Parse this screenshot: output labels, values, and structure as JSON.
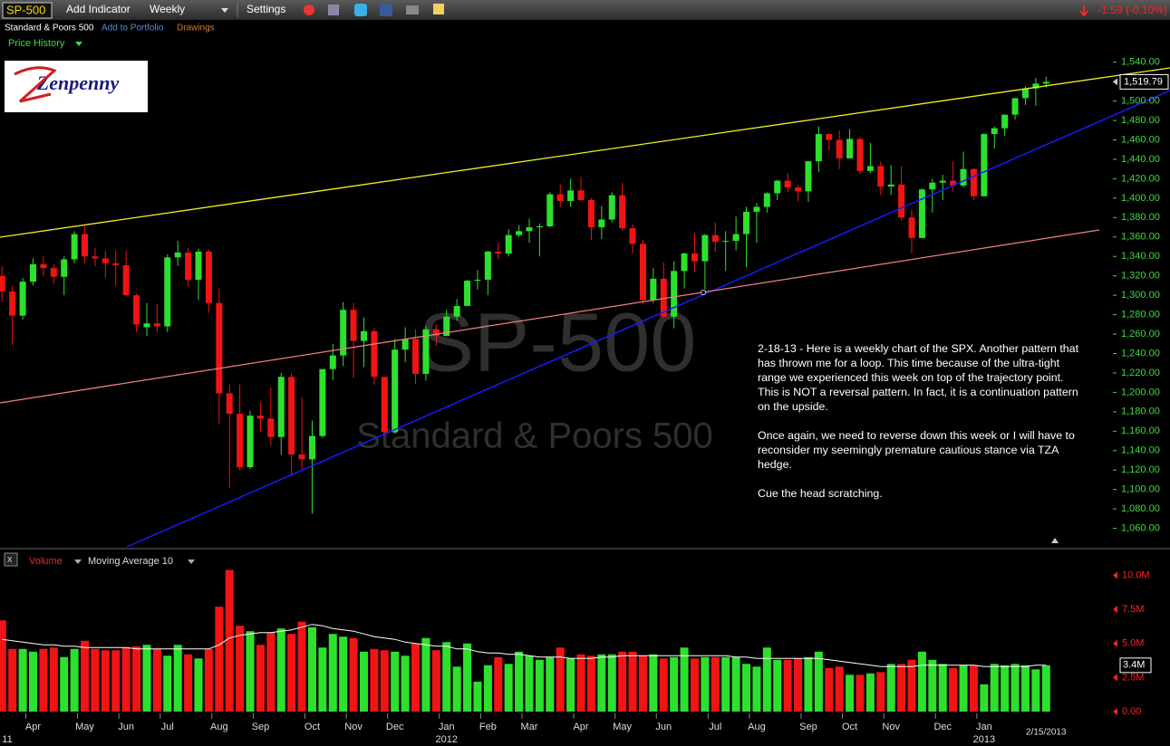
{
  "toolbar": {
    "symbol": "SP-500",
    "add_indicator": "Add Indicator",
    "interval": "Weekly",
    "settings": "Settings",
    "change": "-1.59 (-0.10%)"
  },
  "subbar": {
    "name": "Standard & Poors 500",
    "add_portfolio": "Add to Portfolio",
    "drawings": "Drawings"
  },
  "panel_title": "Price History",
  "logo": "Zenpenny",
  "annotation": [
    "2-18-13 - Here is a weekly chart of the SPX. Another pattern that has thrown me for a loop. This time because of the ultra-tight range we experienced this week on top of the trajectory point. This is NOT a reversal pattern. In fact, it is a continuation pattern on the upside.",
    "Once again, we need to reverse down this week or I will have to reconsider my seemingly premature cautious stance via TZA hedge.",
    "Cue the head scratching."
  ],
  "chart_data": {
    "type": "candlestick",
    "watermark": "SP-500",
    "watermark_sub": "Standard & Poors 500",
    "up_color": "#2ee02e",
    "down_color": "#f01414",
    "xlim": [
      -0.2,
      107.2
    ],
    "ylim": [
      1040,
      1550
    ],
    "yticks": [
      {
        "value": 1060,
        "label": "1,060.00"
      },
      {
        "value": 1080,
        "label": "1,080.00"
      },
      {
        "value": 1100,
        "label": "1,100.00"
      },
      {
        "value": 1120,
        "label": "1,120.00"
      },
      {
        "value": 1140,
        "label": "1,140.00"
      },
      {
        "value": 1160,
        "label": "1,160.00"
      },
      {
        "value": 1180,
        "label": "1,180.00"
      },
      {
        "value": 1200,
        "label": "1,200.00"
      },
      {
        "value": 1220,
        "label": "1,220.00"
      },
      {
        "value": 1240,
        "label": "1,240.00"
      },
      {
        "value": 1260,
        "label": "1,260.00"
      },
      {
        "value": 1280,
        "label": "1,280.00"
      },
      {
        "value": 1300,
        "label": "1,300.00"
      },
      {
        "value": 1320,
        "label": "1,320.00"
      },
      {
        "value": 1340,
        "label": "1,340.00"
      },
      {
        "value": 1360,
        "label": "1,360.00"
      },
      {
        "value": 1380,
        "label": "1,380.00"
      },
      {
        "value": 1400,
        "label": "1,400.00"
      },
      {
        "value": 1420,
        "label": "1,420.00"
      },
      {
        "value": 1440,
        "label": "1,440.00"
      },
      {
        "value": 1460,
        "label": "1,460.00"
      },
      {
        "value": 1480,
        "label": "1,480.00"
      },
      {
        "value": 1500,
        "label": "1,500.00"
      },
      {
        "value": 1520,
        "label": "1,520.00"
      },
      {
        "value": 1540,
        "label": "1,540.00"
      }
    ],
    "last_price_label": "1,519.79",
    "ohlc": [
      [
        1320,
        1330,
        1294,
        1304
      ],
      [
        1304,
        1310,
        1249,
        1279
      ],
      [
        1279,
        1318,
        1275,
        1314
      ],
      [
        1314,
        1338,
        1310,
        1332
      ],
      [
        1332,
        1340,
        1320,
        1328
      ],
      [
        1328,
        1332,
        1312,
        1319
      ],
      [
        1319,
        1340,
        1300,
        1337
      ],
      [
        1337,
        1366,
        1333,
        1363
      ],
      [
        1363,
        1371,
        1333,
        1340
      ],
      [
        1340,
        1349,
        1330,
        1338
      ],
      [
        1338,
        1346,
        1318,
        1333
      ],
      [
        1333,
        1346,
        1310,
        1331
      ],
      [
        1331,
        1346,
        1299,
        1300
      ],
      [
        1300,
        1302,
        1262,
        1270
      ],
      [
        1267,
        1292,
        1258,
        1271
      ],
      [
        1271,
        1291,
        1262,
        1268
      ],
      [
        1268,
        1342,
        1262,
        1339
      ],
      [
        1339,
        1356,
        1330,
        1344
      ],
      [
        1344,
        1349,
        1309,
        1316
      ],
      [
        1316,
        1348,
        1295,
        1345
      ],
      [
        1345,
        1347,
        1282,
        1292
      ],
      [
        1292,
        1307,
        1168,
        1199
      ],
      [
        1199,
        1208,
        1101,
        1178
      ],
      [
        1178,
        1208,
        1120,
        1123
      ],
      [
        1123,
        1181,
        1121,
        1176
      ],
      [
        1176,
        1190,
        1159,
        1173
      ],
      [
        1173,
        1205,
        1145,
        1154
      ],
      [
        1154,
        1220,
        1136,
        1216
      ],
      [
        1216,
        1220,
        1114,
        1136
      ],
      [
        1136,
        1195,
        1121,
        1131
      ],
      [
        1131,
        1171,
        1075,
        1155
      ],
      [
        1155,
        1224,
        1153,
        1224
      ],
      [
        1224,
        1250,
        1213,
        1238
      ],
      [
        1238,
        1293,
        1227,
        1285
      ],
      [
        1285,
        1292,
        1215,
        1253
      ],
      [
        1253,
        1277,
        1226,
        1263
      ],
      [
        1263,
        1266,
        1208,
        1216
      ],
      [
        1216,
        1216,
        1158,
        1159
      ],
      [
        1159,
        1255,
        1158,
        1244
      ],
      [
        1244,
        1267,
        1231,
        1255
      ],
      [
        1255,
        1265,
        1209,
        1219
      ],
      [
        1219,
        1268,
        1212,
        1265
      ],
      [
        1265,
        1270,
        1248,
        1258
      ],
      [
        1258,
        1285,
        1258,
        1278
      ],
      [
        1278,
        1296,
        1274,
        1289
      ],
      [
        1289,
        1316,
        1290,
        1315
      ],
      [
        1315,
        1326,
        1306,
        1316
      ],
      [
        1316,
        1346,
        1300,
        1345
      ],
      [
        1345,
        1354,
        1337,
        1343
      ],
      [
        1343,
        1368,
        1340,
        1362
      ],
      [
        1362,
        1372,
        1360,
        1366
      ],
      [
        1366,
        1379,
        1354,
        1370
      ],
      [
        1370,
        1374,
        1340,
        1371
      ],
      [
        1371,
        1406,
        1370,
        1404
      ],
      [
        1404,
        1414,
        1391,
        1397
      ],
      [
        1397,
        1420,
        1391,
        1408
      ],
      [
        1408,
        1422,
        1397,
        1398
      ],
      [
        1398,
        1400,
        1357,
        1370
      ],
      [
        1370,
        1392,
        1358,
        1378
      ],
      [
        1378,
        1406,
        1375,
        1403
      ],
      [
        1403,
        1416,
        1367,
        1369
      ],
      [
        1369,
        1373,
        1343,
        1353
      ],
      [
        1353,
        1357,
        1291,
        1295
      ],
      [
        1295,
        1328,
        1292,
        1317
      ],
      [
        1317,
        1334,
        1277,
        1278
      ],
      [
        1278,
        1335,
        1266,
        1325
      ],
      [
        1325,
        1344,
        1307,
        1343
      ],
      [
        1343,
        1364,
        1324,
        1335
      ],
      [
        1335,
        1363,
        1306,
        1362
      ],
      [
        1362,
        1375,
        1345,
        1355
      ],
      [
        1355,
        1366,
        1325,
        1356
      ],
      [
        1356,
        1381,
        1346,
        1363
      ],
      [
        1363,
        1391,
        1329,
        1386
      ],
      [
        1386,
        1395,
        1354,
        1391
      ],
      [
        1391,
        1406,
        1385,
        1405
      ],
      [
        1405,
        1419,
        1398,
        1418
      ],
      [
        1418,
        1426,
        1406,
        1411
      ],
      [
        1411,
        1414,
        1397,
        1407
      ],
      [
        1407,
        1438,
        1396,
        1438
      ],
      [
        1438,
        1474,
        1427,
        1466
      ],
      [
        1466,
        1467,
        1449,
        1460
      ],
      [
        1460,
        1470,
        1430,
        1441
      ],
      [
        1441,
        1471,
        1441,
        1461
      ],
      [
        1461,
        1463,
        1425,
        1428
      ],
      [
        1428,
        1457,
        1426,
        1433
      ],
      [
        1433,
        1438,
        1403,
        1412
      ],
      [
        1412,
        1434,
        1403,
        1414
      ],
      [
        1414,
        1433,
        1377,
        1380
      ],
      [
        1380,
        1388,
        1343,
        1359
      ],
      [
        1359,
        1410,
        1359,
        1409
      ],
      [
        1409,
        1420,
        1385,
        1416
      ],
      [
        1416,
        1424,
        1398,
        1418
      ],
      [
        1418,
        1438,
        1407,
        1413
      ],
      [
        1413,
        1448,
        1411,
        1430
      ],
      [
        1430,
        1431,
        1398,
        1402
      ],
      [
        1402,
        1467,
        1402,
        1466
      ],
      [
        1466,
        1474,
        1451,
        1472
      ],
      [
        1472,
        1486,
        1464,
        1486
      ],
      [
        1486,
        1503,
        1481,
        1503
      ],
      [
        1503,
        1515,
        1496,
        1513
      ],
      [
        1513,
        1524,
        1495,
        1518
      ],
      [
        1518,
        1525,
        1514,
        1519.79
      ]
    ],
    "month_ticks": [
      {
        "value": 3,
        "label": "Apr"
      },
      {
        "value": 8,
        "label": "May"
      },
      {
        "value": 12,
        "label": "Jun"
      },
      {
        "value": 16,
        "label": "Jul"
      },
      {
        "value": 21,
        "label": "Aug"
      },
      {
        "value": 25,
        "label": "Sep"
      },
      {
        "value": 30,
        "label": "Oct"
      },
      {
        "value": 34,
        "label": "Nov"
      },
      {
        "value": 38,
        "label": "Dec"
      },
      {
        "value": 43,
        "label": "Jan"
      },
      {
        "value": 47,
        "label": "Feb"
      },
      {
        "value": 51,
        "label": "Mar"
      },
      {
        "value": 56,
        "label": "Apr"
      },
      {
        "value": 60,
        "label": "May"
      },
      {
        "value": 64,
        "label": "Jun"
      },
      {
        "value": 69,
        "label": "Jul"
      },
      {
        "value": 73,
        "label": "Aug"
      },
      {
        "value": 78,
        "label": "Sep"
      },
      {
        "value": 82,
        "label": "Oct"
      },
      {
        "value": 86,
        "label": "Nov"
      },
      {
        "value": 91,
        "label": "Dec"
      },
      {
        "value": 95,
        "label": "Jan"
      }
    ],
    "year_labels": [
      {
        "value": 0,
        "label": "11"
      },
      {
        "value": 43,
        "label": "2012"
      },
      {
        "value": 95,
        "label": "2013"
      }
    ],
    "last_date": "2/15/2013",
    "volume_title": "Volume",
    "moving_average_name": "Moving Average 10",
    "volume_ylim": [
      0,
      10.5
    ],
    "volume_ticks": [
      {
        "value": 0,
        "label": "0.00"
      },
      {
        "value": 2.5,
        "label": "2.5M"
      },
      {
        "value": 5,
        "label": "5.0M"
      },
      {
        "value": 7.5,
        "label": "7.5M"
      },
      {
        "value": 10,
        "label": "10.0M"
      }
    ],
    "last_volume_label": "3.4M",
    "ma_color": "#ffffff",
    "volume": [
      6.7,
      4.6,
      4.6,
      4.4,
      4.6,
      4.7,
      4.0,
      4.6,
      5.2,
      4.6,
      4.5,
      4.5,
      4.7,
      4.8,
      4.9,
      4.6,
      4.1,
      4.9,
      4.2,
      3.9,
      4.6,
      7.7,
      10.4,
      6.3,
      5.9,
      4.9,
      5.8,
      6.1,
      5.7,
      6.6,
      6.2,
      4.7,
      5.7,
      5.5,
      5.4,
      4.4,
      4.6,
      4.5,
      4.4,
      4.1,
      5.0,
      5.4,
      4.5,
      5.1,
      3.3,
      5.0,
      2.2,
      3.4,
      4.0,
      3.5,
      4.4,
      4.1,
      3.8,
      4.0,
      4.7,
      3.9,
      4.2,
      4.1,
      4.2,
      4.2,
      4.4,
      4.4,
      4.1,
      4.2,
      3.9,
      4.0,
      4.7,
      3.9,
      4.0,
      4.0,
      4.0,
      4.0,
      3.5,
      3.3,
      4.7,
      3.8,
      3.8,
      3.9,
      4.0,
      4.4,
      3.2,
      3.3,
      2.7,
      2.7,
      2.8,
      2.9,
      3.5,
      3.5,
      3.8,
      4.4,
      3.8,
      3.5,
      3.2,
      3.4,
      3.4,
      2.0,
      3.5,
      3.4,
      3.5,
      3.4,
      3.1,
      3.4
    ],
    "moving_average": [
      5.3,
      5.2,
      5.1,
      5.0,
      4.9,
      4.9,
      4.8,
      4.8,
      4.7,
      4.7,
      4.7,
      4.7,
      4.7,
      4.6,
      4.6,
      4.6,
      4.6,
      4.6,
      4.6,
      4.6,
      4.6,
      4.9,
      5.4,
      5.6,
      5.7,
      5.8,
      5.8,
      5.9,
      6.0,
      6.2,
      6.4,
      6.3,
      6.1,
      6.0,
      5.9,
      5.7,
      5.5,
      5.4,
      5.3,
      5.1,
      5.0,
      4.9,
      4.8,
      4.8,
      4.6,
      4.6,
      4.4,
      4.3,
      4.3,
      4.2,
      4.2,
      4.1,
      4.0,
      4.0,
      4.0,
      3.9,
      3.9,
      3.9,
      4.0,
      4.0,
      4.1,
      4.1,
      4.1,
      4.1,
      4.1,
      4.1,
      4.1,
      4.1,
      4.1,
      4.1,
      4.1,
      4.0,
      4.0,
      3.9,
      3.9,
      3.9,
      3.9,
      3.9,
      3.9,
      3.9,
      3.8,
      3.7,
      3.6,
      3.5,
      3.4,
      3.3,
      3.3,
      3.3,
      3.3,
      3.4,
      3.4,
      3.4,
      3.4,
      3.4,
      3.4,
      3.3,
      3.3,
      3.3,
      3.3,
      3.3,
      3.4,
      3.4
    ]
  }
}
